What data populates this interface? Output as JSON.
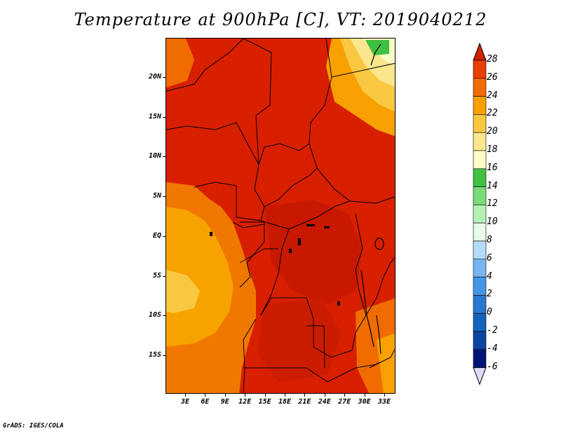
{
  "title": "Temperature at 900hPa [C], VT: 2019040212",
  "map": {
    "lat_labels": [
      "20N",
      "15N",
      "10N",
      "5N",
      "EQ",
      "5S",
      "10S",
      "15S"
    ],
    "lon_labels": [
      "3E",
      "6E",
      "9E",
      "12E",
      "15E",
      "18E",
      "21E",
      "24E",
      "27E",
      "30E",
      "33E"
    ]
  },
  "colorbar": {
    "levels": [
      "28",
      "26",
      "24",
      "22",
      "20",
      "18",
      "16",
      "14",
      "12",
      "10",
      "8",
      "6",
      "4",
      "2",
      "0",
      "-2",
      "-4",
      "-6"
    ],
    "colors": [
      "#d02000",
      "#e84000",
      "#f06c00",
      "#f8a000",
      "#fac840",
      "#fae68c",
      "#fcfcc8",
      "#40c040",
      "#78dc78",
      "#b4f0b4",
      "#e6fae6",
      "#b4dcfa",
      "#78b4f0",
      "#4696e6",
      "#2878d2",
      "#1464be",
      "#0a46a0",
      "#001478",
      "#dcdcf8"
    ]
  },
  "footer": "GrADS: IGES/COLA"
}
